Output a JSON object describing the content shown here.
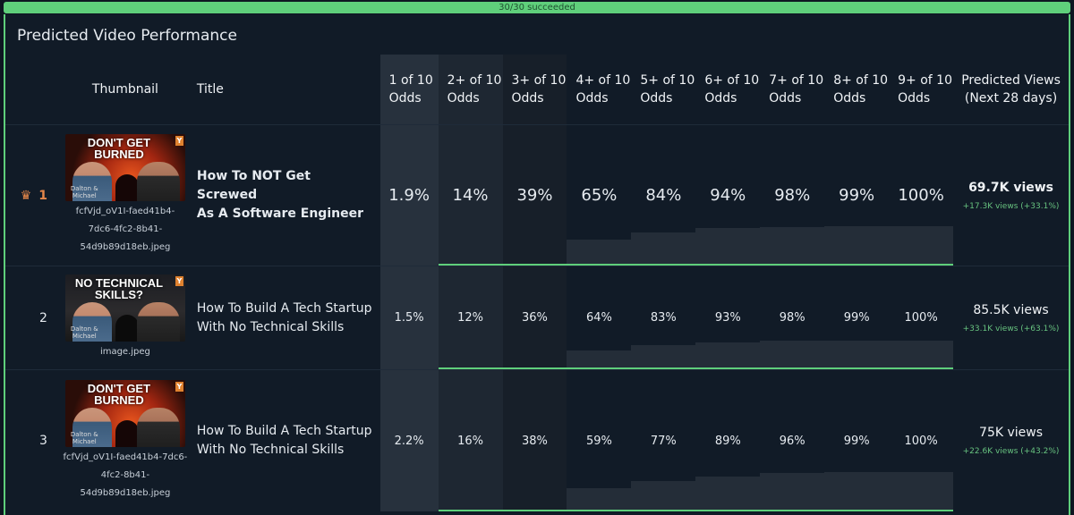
{
  "status": {
    "text": "30/30 succeeded"
  },
  "panel": {
    "title": "Predicted Video Performance"
  },
  "columns": {
    "thumbnail": "Thumbnail",
    "title": "Title",
    "odds": [
      [
        "1 of 10",
        "Odds"
      ],
      [
        "2+ of 10",
        "Odds"
      ],
      [
        "3+ of 10",
        "Odds"
      ],
      [
        "4+ of 10",
        "Odds"
      ],
      [
        "5+ of 10",
        "Odds"
      ],
      [
        "6+ of 10",
        "Odds"
      ],
      [
        "7+ of 10",
        "Odds"
      ],
      [
        "8+ of 10",
        "Odds"
      ],
      [
        "9+ of 10",
        "Odds"
      ]
    ],
    "views": [
      "Predicted Views",
      "(Next 28 days)"
    ]
  },
  "rows": [
    {
      "rank": "1",
      "top": true,
      "thumb_text": [
        "DON'T GET",
        "BURNED"
      ],
      "thumb_badge": "Y",
      "thumb_names": [
        "Dalton &",
        "Michael"
      ],
      "filename": [
        "fcfVjd_oV1I-faed41b4-",
        "7dc6-4fc2-8b41-",
        "54d9b89d18eb.jpeg"
      ],
      "title": [
        "How To NOT Get Screwed",
        "As A Software Engineer"
      ],
      "odds": [
        "1.9%",
        "14%",
        "39%",
        "65%",
        "84%",
        "94%",
        "98%",
        "99%",
        "100%"
      ],
      "odds_values": [
        0.019,
        0.14,
        0.39,
        0.65,
        0.84,
        0.94,
        0.98,
        0.99,
        1.0
      ],
      "views": "69.7K views",
      "delta": "+17.3K views (+33.1%)"
    },
    {
      "rank": "2",
      "top": false,
      "thumb_text": [
        "NO TECHNICAL",
        "SKILLS?"
      ],
      "thumb_badge": "Y",
      "thumb_names": [
        "Dalton &",
        "Michael"
      ],
      "filename": [
        "image.jpeg"
      ],
      "title": [
        "How To Build A Tech Startup",
        "With No Technical Skills"
      ],
      "odds": [
        "1.5%",
        "12%",
        "36%",
        "64%",
        "83%",
        "93%",
        "98%",
        "99%",
        "100%"
      ],
      "odds_values": [
        0.015,
        0.12,
        0.36,
        0.64,
        0.83,
        0.93,
        0.98,
        0.99,
        1.0
      ],
      "views": "85.5K views",
      "delta": "+33.1K views (+63.1%)"
    },
    {
      "rank": "3",
      "top": false,
      "thumb_text": [
        "DON'T GET",
        "BURNED"
      ],
      "thumb_badge": "Y",
      "thumb_names": [
        "Dalton &",
        "Michael"
      ],
      "filename": [
        "fcfVjd_oV1I-faed41b4-7dc6-",
        "4fc2-8b41-",
        "54d9b89d18eb.jpeg"
      ],
      "title": [
        "How To Build A Tech Startup",
        "With No Technical Skills"
      ],
      "odds": [
        "2.2%",
        "16%",
        "38%",
        "59%",
        "77%",
        "89%",
        "96%",
        "99%",
        "100%"
      ],
      "odds_values": [
        0.022,
        0.16,
        0.38,
        0.59,
        0.77,
        0.89,
        0.96,
        0.99,
        1.0
      ],
      "views": "75K views",
      "delta": "+22.6K views (+43.2%)"
    }
  ]
}
